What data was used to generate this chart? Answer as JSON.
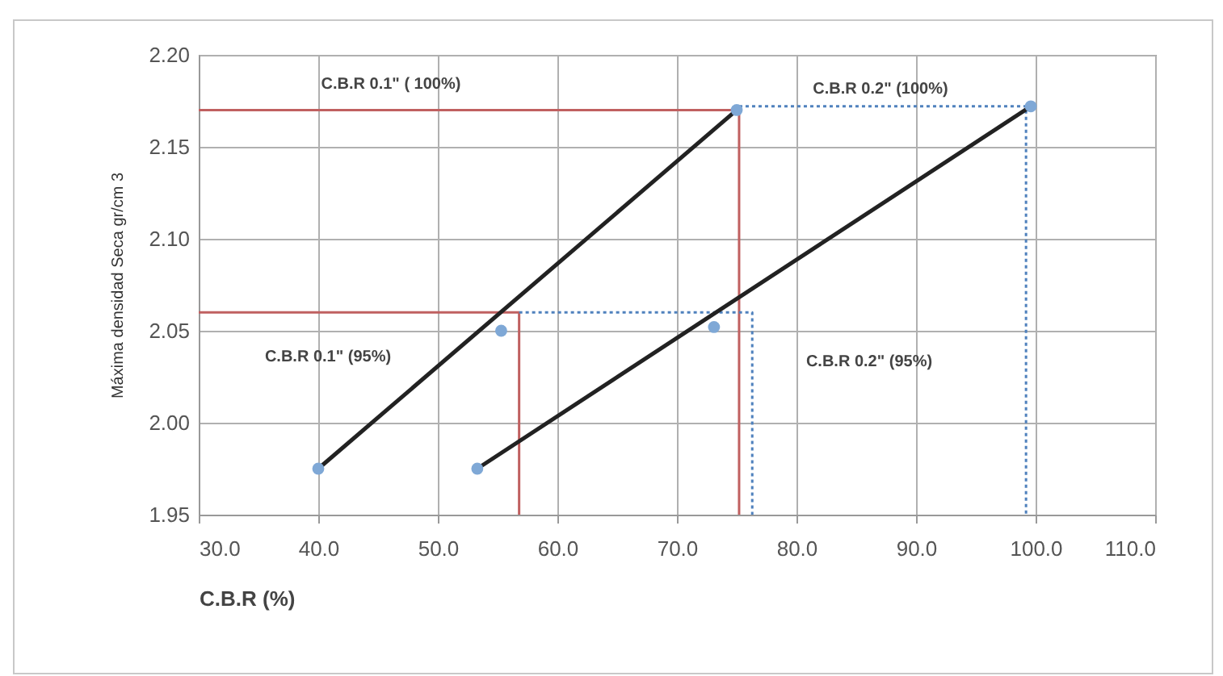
{
  "chart_data": {
    "type": "line",
    "xlabel": "C.B.R (%)",
    "ylabel": "Máxima densidad Seca gr/cm 3",
    "xlim": [
      30,
      110
    ],
    "xticks": [
      {
        "value": 30,
        "label": "30.0"
      },
      {
        "value": 40,
        "label": "40.0"
      },
      {
        "value": 50,
        "label": "50.0"
      },
      {
        "value": 60,
        "label": "60.0"
      },
      {
        "value": 70,
        "label": "70.0"
      },
      {
        "value": 80,
        "label": "80.0"
      },
      {
        "value": 90,
        "label": "90.0"
      },
      {
        "value": 100,
        "label": "100.0"
      },
      {
        "value": 110,
        "label": "110.0"
      }
    ],
    "ylim": [
      1.95,
      2.2
    ],
    "yticks": [
      {
        "value": 1.95,
        "label": "1.95"
      },
      {
        "value": 2.0,
        "label": "2.00"
      },
      {
        "value": 2.05,
        "label": "2.05"
      },
      {
        "value": 2.1,
        "label": "2.10"
      },
      {
        "value": 2.15,
        "label": "2.15"
      },
      {
        "value": 2.2,
        "label": "2.20"
      }
    ],
    "grid": true,
    "series": [
      {
        "color": "#c06060",
        "line_style": "solid",
        "x": [
          30,
          75.2,
          75.2
        ],
        "values": [
          2.17,
          2.17,
          1.95
        ]
      },
      {
        "color": "#c06060",
        "line_style": "solid",
        "x": [
          30,
          56.8,
          56.8
        ],
        "values": [
          2.06,
          2.06,
          1.95
        ]
      },
      {
        "color": "#4f81bd",
        "line_style": "dotted",
        "x": [
          75.2,
          99.2,
          99.2
        ],
        "values": [
          2.172,
          2.172,
          1.95
        ]
      },
      {
        "color": "#4f81bd",
        "line_style": "dotted",
        "x": [
          56.8,
          76.3,
          76.3
        ],
        "values": [
          2.06,
          2.06,
          1.95
        ]
      },
      {
        "color": "#222222",
        "line_style": "solid",
        "x": [
          40,
          75
        ],
        "values": [
          1.975,
          2.17
        ]
      },
      {
        "color": "#222222",
        "line_style": "solid",
        "x": [
          53.3,
          99.6
        ],
        "values": [
          1.975,
          2.172
        ]
      },
      {
        "type": "scatter",
        "color": "#7fa8d6",
        "marker": "circle",
        "x": [
          40,
          55.3,
          75
        ],
        "values": [
          1.975,
          2.05,
          2.17
        ]
      },
      {
        "type": "scatter",
        "color": "#7fa8d6",
        "marker": "circle",
        "x": [
          53.3,
          73.1,
          99.6
        ],
        "values": [
          1.975,
          2.052,
          2.172
        ]
      }
    ],
    "annotations": [
      "C.B.R 0.1\" ( 100%)",
      "C.B.R  0.2\" (100%)",
      "C.B.R 0.1\" (95%)",
      "C.B.R 0.2\" (95%)"
    ]
  }
}
